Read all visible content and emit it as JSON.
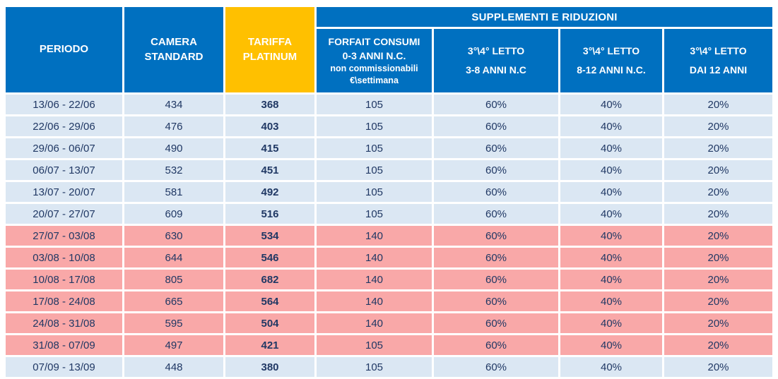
{
  "colors": {
    "header_blue": "#0070C0",
    "accent_yellow": "#FFC000",
    "row_blue": "#DBE7F3",
    "row_pink": "#F9A8A8",
    "text_navy": "#203864"
  },
  "chart_data": {
    "type": "table",
    "group_header": "SUPPLEMENTI E RIDUZIONI",
    "columns": {
      "periodo": "PERIODO",
      "camera_standard": "CAMERA STANDARD",
      "tariffa_platinum": "TARIFFA PLATINUM",
      "forfait": {
        "line1": "FORFAIT CONSUMI",
        "line2": "0-3 ANNI N.C.",
        "line3": "non commissionabili",
        "line4": "€\\settimana"
      },
      "letto_3_8": {
        "line1": "3°\\4° LETTO",
        "line2": "3-8 ANNI N.C"
      },
      "letto_8_12": {
        "line1": "3°\\4° LETTO",
        "line2": "8-12 ANNI N.C."
      },
      "letto_dai_12": {
        "line1": "3°\\4° LETTO",
        "line2": "DAI 12 ANNI"
      }
    },
    "rows": [
      {
        "periodo": "13/06 - 22/06",
        "camera_standard": "434",
        "tariffa_platinum": "368",
        "forfait": "105",
        "letto_3_8": "60%",
        "letto_8_12": "40%",
        "letto_dai_12": "20%",
        "highlight": false
      },
      {
        "periodo": "22/06 - 29/06",
        "camera_standard": "476",
        "tariffa_platinum": "403",
        "forfait": "105",
        "letto_3_8": "60%",
        "letto_8_12": "40%",
        "letto_dai_12": "20%",
        "highlight": false
      },
      {
        "periodo": "29/06 - 06/07",
        "camera_standard": "490",
        "tariffa_platinum": "415",
        "forfait": "105",
        "letto_3_8": "60%",
        "letto_8_12": "40%",
        "letto_dai_12": "20%",
        "highlight": false
      },
      {
        "periodo": "06/07 - 13/07",
        "camera_standard": "532",
        "tariffa_platinum": "451",
        "forfait": "105",
        "letto_3_8": "60%",
        "letto_8_12": "40%",
        "letto_dai_12": "20%",
        "highlight": false
      },
      {
        "periodo": "13/07 - 20/07",
        "camera_standard": "581",
        "tariffa_platinum": "492",
        "forfait": "105",
        "letto_3_8": "60%",
        "letto_8_12": "40%",
        "letto_dai_12": "20%",
        "highlight": false
      },
      {
        "periodo": "20/07 - 27/07",
        "camera_standard": "609",
        "tariffa_platinum": "516",
        "forfait": "105",
        "letto_3_8": "60%",
        "letto_8_12": "40%",
        "letto_dai_12": "20%",
        "highlight": false
      },
      {
        "periodo": "27/07 - 03/08",
        "camera_standard": "630",
        "tariffa_platinum": "534",
        "forfait": "140",
        "letto_3_8": "60%",
        "letto_8_12": "40%",
        "letto_dai_12": "20%",
        "highlight": true
      },
      {
        "periodo": "03/08 - 10/08",
        "camera_standard": "644",
        "tariffa_platinum": "546",
        "forfait": "140",
        "letto_3_8": "60%",
        "letto_8_12": "40%",
        "letto_dai_12": "20%",
        "highlight": true
      },
      {
        "periodo": "10/08 - 17/08",
        "camera_standard": "805",
        "tariffa_platinum": "682",
        "forfait": "140",
        "letto_3_8": "60%",
        "letto_8_12": "40%",
        "letto_dai_12": "20%",
        "highlight": true
      },
      {
        "periodo": "17/08 - 24/08",
        "camera_standard": "665",
        "tariffa_platinum": "564",
        "forfait": "140",
        "letto_3_8": "60%",
        "letto_8_12": "40%",
        "letto_dai_12": "20%",
        "highlight": true
      },
      {
        "periodo": "24/08 - 31/08",
        "camera_standard": "595",
        "tariffa_platinum": "504",
        "forfait": "140",
        "letto_3_8": "60%",
        "letto_8_12": "40%",
        "letto_dai_12": "20%",
        "highlight": true
      },
      {
        "periodo": "31/08 - 07/09",
        "camera_standard": "497",
        "tariffa_platinum": "421",
        "forfait": "105",
        "letto_3_8": "60%",
        "letto_8_12": "40%",
        "letto_dai_12": "20%",
        "highlight": true
      },
      {
        "periodo": "07/09 - 13/09",
        "camera_standard": "448",
        "tariffa_platinum": "380",
        "forfait": "105",
        "letto_3_8": "60%",
        "letto_8_12": "40%",
        "letto_dai_12": "20%",
        "highlight": false
      }
    ]
  }
}
